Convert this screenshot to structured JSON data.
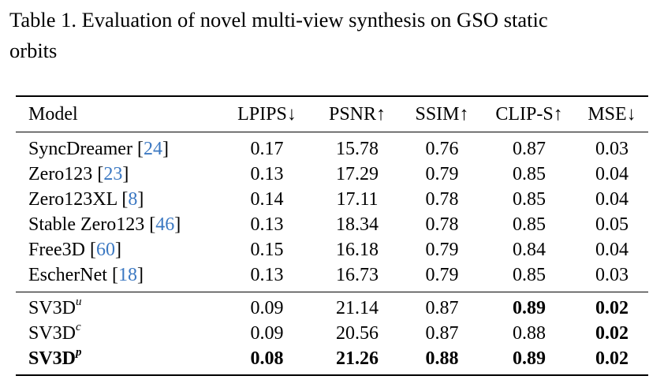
{
  "caption": {
    "line1": "Table 1.  Evaluation of novel multi-view synthesis on GSO static",
    "line2": "orbits"
  },
  "table": {
    "headers": [
      "Model",
      "LPIPS↓",
      "PSNR↑",
      "SSIM↑",
      "CLIP-S↑",
      "MSE↓"
    ],
    "baselines": [
      {
        "name": "SyncDreamer",
        "cite": "24",
        "values": [
          "0.17",
          "15.78",
          "0.76",
          "0.87",
          "0.03"
        ]
      },
      {
        "name": "Zero123",
        "cite": "23",
        "values": [
          "0.13",
          "17.29",
          "0.79",
          "0.85",
          "0.04"
        ]
      },
      {
        "name": "Zero123XL",
        "cite": "8",
        "values": [
          "0.14",
          "17.11",
          "0.78",
          "0.85",
          "0.04"
        ]
      },
      {
        "name": "Stable Zero123",
        "cite": "46",
        "values": [
          "0.13",
          "18.34",
          "0.78",
          "0.85",
          "0.05"
        ]
      },
      {
        "name": "Free3D",
        "cite": "60",
        "values": [
          "0.15",
          "16.18",
          "0.79",
          "0.84",
          "0.04"
        ]
      },
      {
        "name": "EscherNet",
        "cite": "18",
        "values": [
          "0.13",
          "16.73",
          "0.79",
          "0.85",
          "0.03"
        ]
      }
    ],
    "ours": [
      {
        "name": "SV3D",
        "sup": "u",
        "values": [
          "0.09",
          "21.14",
          "0.87",
          "0.89",
          "0.02"
        ],
        "bold": [
          false,
          false,
          false,
          true,
          true
        ],
        "name_bold": false
      },
      {
        "name": "SV3D",
        "sup": "c",
        "values": [
          "0.09",
          "20.56",
          "0.87",
          "0.88",
          "0.02"
        ],
        "bold": [
          false,
          false,
          false,
          false,
          true
        ],
        "name_bold": false
      },
      {
        "name": "SV3D",
        "sup": "p",
        "values": [
          "0.08",
          "21.26",
          "0.88",
          "0.89",
          "0.02"
        ],
        "bold": [
          true,
          true,
          true,
          true,
          true
        ],
        "name_bold": true
      }
    ]
  }
}
